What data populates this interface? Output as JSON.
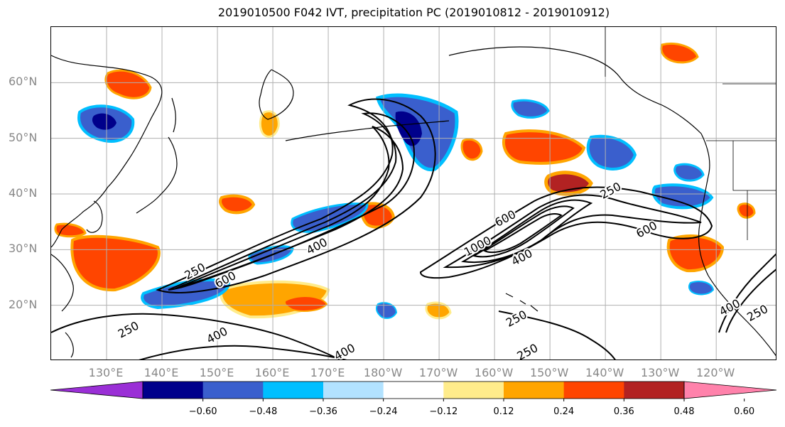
{
  "title": "2019010500 F042 IVT, precipitation PC (2019010812 - 2019010912)",
  "lat_labels": [
    {
      "text": "60°N",
      "lat": 60
    },
    {
      "text": "50°N",
      "lat": 50
    },
    {
      "text": "40°N",
      "lat": 40
    },
    {
      "text": "30°N",
      "lat": 30
    },
    {
      "text": "20°N",
      "lat": 20
    }
  ],
  "lon_labels": [
    {
      "text": "130°E",
      "lon": 130
    },
    {
      "text": "140°E",
      "lon": 140
    },
    {
      "text": "150°E",
      "lon": 150
    },
    {
      "text": "160°E",
      "lon": 160
    },
    {
      "text": "170°E",
      "lon": 170
    },
    {
      "text": "180°W",
      "lon": 180
    },
    {
      "text": "170°W",
      "lon": 190
    },
    {
      "text": "160°W",
      "lon": 200
    },
    {
      "text": "150°W",
      "lon": 210
    },
    {
      "text": "140°W",
      "lon": 220
    },
    {
      "text": "130°W",
      "lon": 230
    },
    {
      "text": "120°W",
      "lon": 240
    }
  ],
  "map_extent": {
    "lon_min": 120,
    "lon_max": 251,
    "lat_min": 10,
    "lat_max": 70
  },
  "contour_labels": [
    {
      "text": "250",
      "lon": 146,
      "lat": 26
    },
    {
      "text": "600",
      "lon": 151.5,
      "lat": 24.5
    },
    {
      "text": "400",
      "lon": 168,
      "lat": 30.5
    },
    {
      "text": "1000",
      "lon": 197,
      "lat": 30.5
    },
    {
      "text": "400",
      "lon": 205,
      "lat": 28.5
    },
    {
      "text": "600",
      "lon": 202,
      "lat": 35.5
    },
    {
      "text": "250",
      "lon": 221,
      "lat": 40.5
    },
    {
      "text": "600",
      "lon": 227.5,
      "lat": 33.5
    },
    {
      "text": "250",
      "lon": 134,
      "lat": 15.5
    },
    {
      "text": "400",
      "lon": 150,
      "lat": 14.5
    },
    {
      "text": "400",
      "lon": 173,
      "lat": 11.5
    },
    {
      "text": "250",
      "lon": 204,
      "lat": 17.5
    },
    {
      "text": "250",
      "lon": 206,
      "lat": 11.5
    },
    {
      "text": "400",
      "lon": 242.5,
      "lat": 19.5
    },
    {
      "text": "250",
      "lon": 247.5,
      "lat": 18.5
    }
  ],
  "colorbar": {
    "colors": [
      "#9a2fd6",
      "#00008b",
      "#3a5fcd",
      "#00bfff",
      "#b2e2ff",
      "#ffffff",
      "#ffec8b",
      "#ffa500",
      "#ff4500",
      "#b22222",
      "#ff82ab"
    ],
    "tick_labels": [
      "−0.60",
      "−0.48",
      "−0.36",
      "−0.24",
      "−0.12",
      "0.12",
      "0.24",
      "0.36",
      "0.48",
      "0.60"
    ]
  }
}
